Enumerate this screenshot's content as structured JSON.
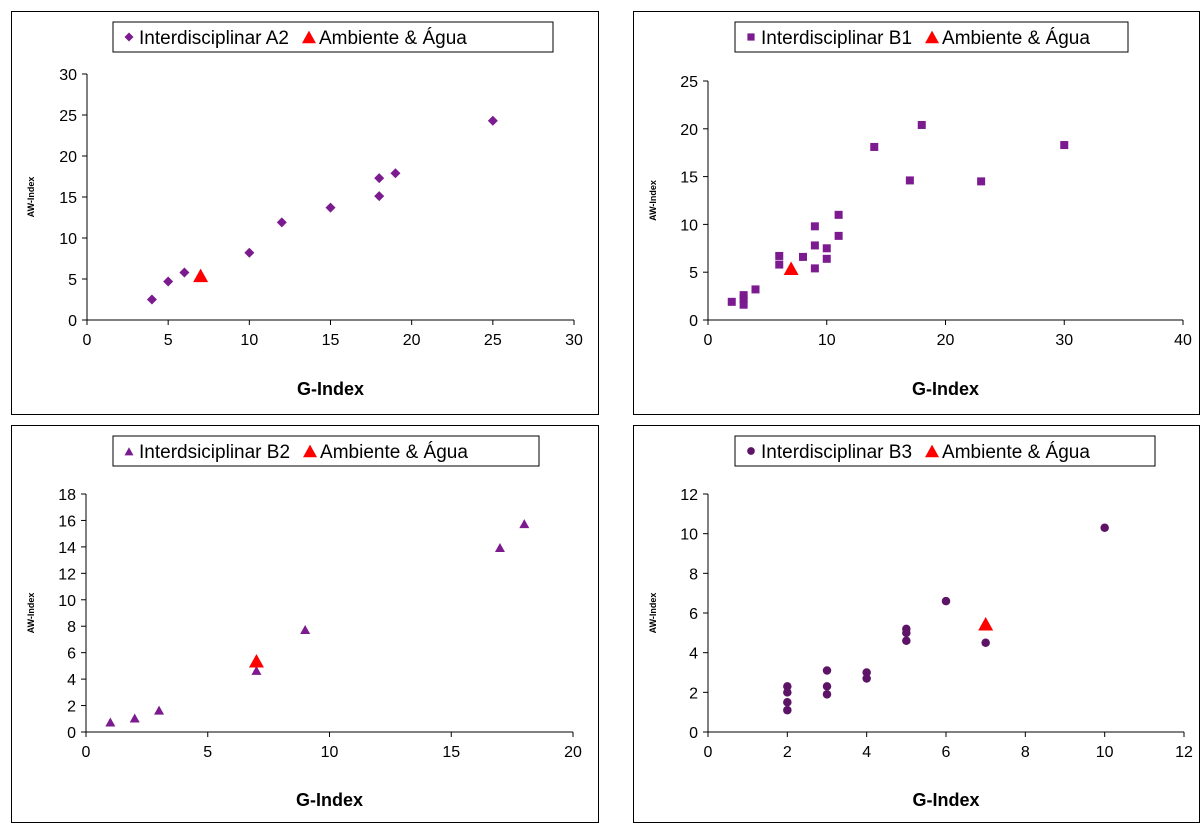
{
  "colors": {
    "series": "#7B1B8F",
    "series_b3": "#5E1466",
    "highlight": "#FF0000"
  },
  "chart_data": [
    {
      "type": "scatter",
      "xlabel": "G-Index",
      "ylabel": "AW-Index",
      "xlim": [
        0,
        30
      ],
      "xticks": [
        0,
        5,
        10,
        15,
        20,
        25,
        30
      ],
      "ylim": [
        0,
        30
      ],
      "yticks": [
        0,
        5,
        10,
        15,
        20,
        25,
        30
      ],
      "grid": false,
      "legend_position": "top-center",
      "series": [
        {
          "name": "Interdisciplinar A2",
          "marker": "diamond",
          "color": "#7B1B8F",
          "points": [
            [
              4,
              2.5
            ],
            [
              5,
              4.7
            ],
            [
              6,
              5.8
            ],
            [
              10,
              8.2
            ],
            [
              12,
              11.9
            ],
            [
              15,
              13.7
            ],
            [
              18,
              15.1
            ],
            [
              18,
              17.3
            ],
            [
              19,
              17.9
            ],
            [
              25,
              24.3
            ]
          ]
        },
        {
          "name": "Ambiente & Água",
          "marker": "triangle",
          "color": "#FF0000",
          "points": [
            [
              7,
              5.3
            ]
          ]
        }
      ]
    },
    {
      "type": "scatter",
      "xlabel": "G-Index",
      "ylabel": "AW-Index",
      "xlim": [
        0,
        40
      ],
      "xticks": [
        0,
        10,
        20,
        30,
        40
      ],
      "ylim": [
        0,
        25
      ],
      "yticks": [
        0,
        5,
        10,
        15,
        20,
        25
      ],
      "grid": false,
      "legend_position": "top-center",
      "series": [
        {
          "name": "Interdisciplinar B1",
          "marker": "square",
          "color": "#7B1B8F",
          "points": [
            [
              2,
              1.9
            ],
            [
              3,
              1.6
            ],
            [
              3,
              2.2
            ],
            [
              3,
              2.6
            ],
            [
              4,
              3.2
            ],
            [
              6,
              5.8
            ],
            [
              6,
              6.7
            ],
            [
              8,
              6.6
            ],
            [
              9,
              5.4
            ],
            [
              9,
              7.8
            ],
            [
              9,
              9.8
            ],
            [
              10,
              6.4
            ],
            [
              10,
              7.5
            ],
            [
              11,
              8.8
            ],
            [
              11,
              11.0
            ],
            [
              14,
              18.1
            ],
            [
              17,
              14.6
            ],
            [
              18,
              20.4
            ],
            [
              23,
              14.5
            ],
            [
              30,
              18.3
            ]
          ]
        },
        {
          "name": "Ambiente & Água",
          "marker": "triangle",
          "color": "#FF0000",
          "points": [
            [
              7,
              5.3
            ]
          ]
        }
      ]
    },
    {
      "type": "scatter",
      "xlabel": "G-Index",
      "ylabel": "AW-Index",
      "xlim": [
        0,
        20
      ],
      "xticks": [
        0,
        5,
        10,
        15,
        20
      ],
      "ylim": [
        0,
        18
      ],
      "yticks": [
        0,
        2,
        4,
        6,
        8,
        10,
        12,
        14,
        16,
        18
      ],
      "grid": false,
      "legend_position": "top-center",
      "series": [
        {
          "name": "Interdsiciplinar B2",
          "marker": "triangle",
          "color": "#7B1B8F",
          "points": [
            [
              1,
              0.7
            ],
            [
              2,
              1.0
            ],
            [
              3,
              1.6
            ],
            [
              7,
              4.6
            ],
            [
              9,
              7.7
            ],
            [
              17,
              13.9
            ],
            [
              18,
              15.7
            ]
          ]
        },
        {
          "name": "Ambiente & Água",
          "marker": "triangle",
          "color": "#FF0000",
          "points": [
            [
              7,
              5.3
            ]
          ]
        }
      ]
    },
    {
      "type": "scatter",
      "xlabel": "G-Index",
      "ylabel": "AW-Index",
      "xlim": [
        0,
        12
      ],
      "xticks": [
        0,
        2,
        4,
        6,
        8,
        10,
        12
      ],
      "ylim": [
        0,
        12
      ],
      "yticks": [
        0,
        2,
        4,
        6,
        8,
        10,
        12
      ],
      "grid": false,
      "legend_position": "top-center",
      "series": [
        {
          "name": "Interdisciplinar B3",
          "marker": "circle",
          "color": "#5E1466",
          "points": [
            [
              2,
              1.1
            ],
            [
              2,
              1.5
            ],
            [
              2,
              2.0
            ],
            [
              2,
              2.3
            ],
            [
              3,
              1.9
            ],
            [
              3,
              2.3
            ],
            [
              3,
              3.1
            ],
            [
              4,
              2.7
            ],
            [
              4,
              3.0
            ],
            [
              5,
              4.6
            ],
            [
              5,
              5.0
            ],
            [
              5,
              5.2
            ],
            [
              6,
              6.6
            ],
            [
              7,
              4.5
            ],
            [
              10,
              10.3
            ]
          ]
        },
        {
          "name": "Ambiente & Água",
          "marker": "triangle",
          "color": "#FF0000",
          "points": [
            [
              7,
              5.4
            ]
          ]
        }
      ]
    }
  ]
}
